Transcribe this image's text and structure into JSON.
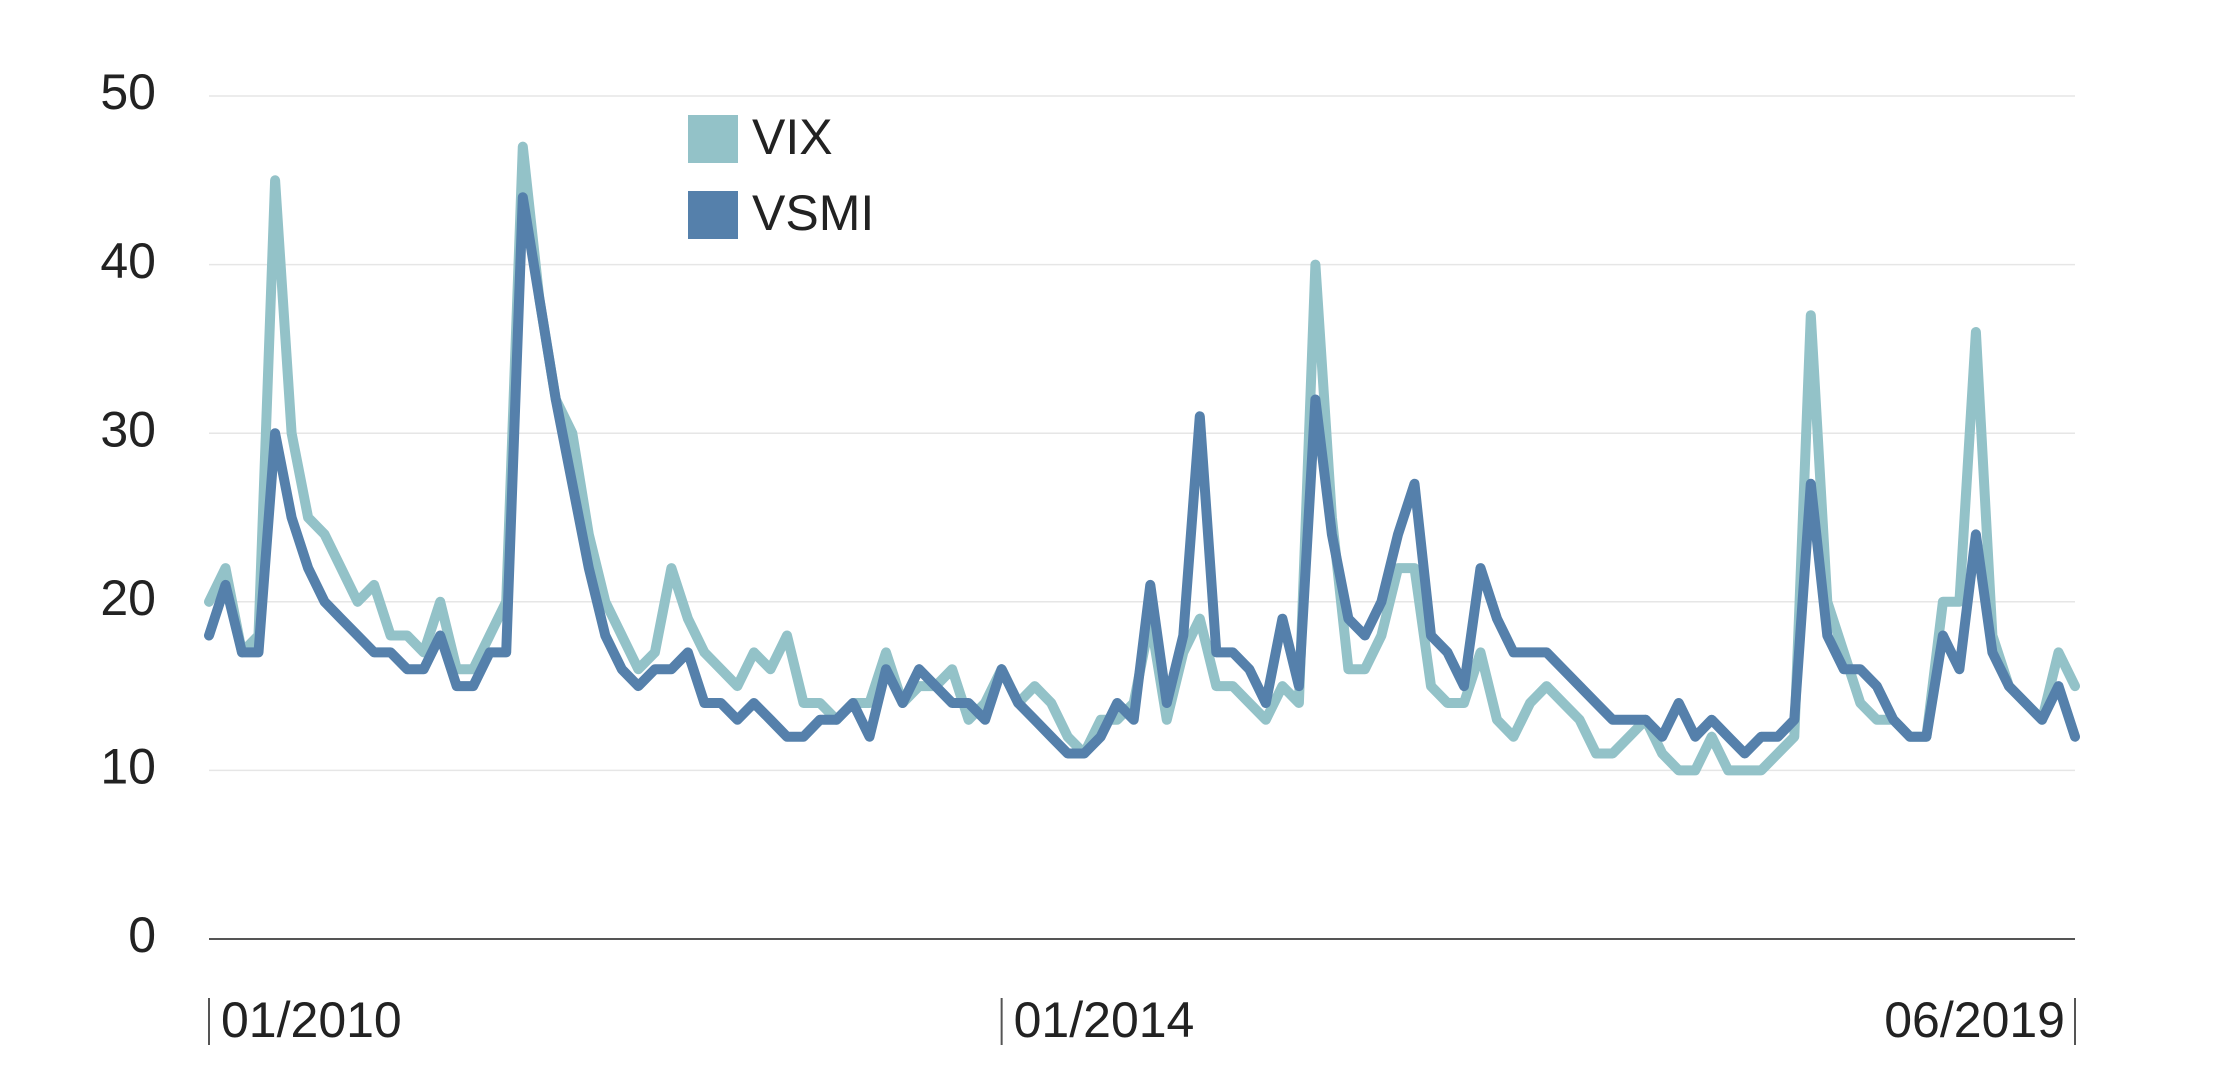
{
  "chart_data": {
    "type": "line",
    "x": [
      "01/2010",
      "02/2010",
      "03/2010",
      "04/2010",
      "05/2010",
      "06/2010",
      "07/2010",
      "08/2010",
      "09/2010",
      "10/2010",
      "11/2010",
      "12/2010",
      "01/2011",
      "02/2011",
      "03/2011",
      "04/2011",
      "05/2011",
      "06/2011",
      "07/2011",
      "08/2011",
      "09/2011",
      "10/2011",
      "11/2011",
      "12/2011",
      "01/2012",
      "02/2012",
      "03/2012",
      "04/2012",
      "05/2012",
      "06/2012",
      "07/2012",
      "08/2012",
      "09/2012",
      "10/2012",
      "11/2012",
      "12/2012",
      "01/2013",
      "02/2013",
      "03/2013",
      "04/2013",
      "05/2013",
      "06/2013",
      "07/2013",
      "08/2013",
      "09/2013",
      "10/2013",
      "11/2013",
      "12/2013",
      "01/2014",
      "02/2014",
      "03/2014",
      "04/2014",
      "05/2014",
      "06/2014",
      "07/2014",
      "08/2014",
      "09/2014",
      "10/2014",
      "11/2014",
      "12/2014",
      "01/2015",
      "02/2015",
      "03/2015",
      "04/2015",
      "05/2015",
      "06/2015",
      "07/2015",
      "08/2015",
      "09/2015",
      "10/2015",
      "11/2015",
      "12/2015",
      "01/2016",
      "02/2016",
      "03/2016",
      "04/2016",
      "05/2016",
      "06/2016",
      "07/2016",
      "08/2016",
      "09/2016",
      "10/2016",
      "11/2016",
      "12/2016",
      "01/2017",
      "02/2017",
      "03/2017",
      "04/2017",
      "05/2017",
      "06/2017",
      "07/2017",
      "08/2017",
      "09/2017",
      "10/2017",
      "11/2017",
      "12/2017",
      "01/2018",
      "02/2018",
      "03/2018",
      "04/2018",
      "05/2018",
      "06/2018",
      "07/2018",
      "08/2018",
      "09/2018",
      "10/2018",
      "11/2018",
      "12/2018",
      "01/2019",
      "02/2019",
      "03/2019",
      "04/2019",
      "05/2019",
      "06/2019"
    ],
    "series": [
      {
        "name": "VIX",
        "color": "#93c2c8",
        "values": [
          20,
          22,
          17,
          18,
          45,
          30,
          25,
          24,
          22,
          20,
          21,
          18,
          18,
          17,
          20,
          16,
          16,
          18,
          20,
          47,
          38,
          32,
          30,
          24,
          20,
          18,
          16,
          17,
          22,
          19,
          17,
          16,
          15,
          17,
          16,
          18,
          14,
          14,
          13,
          14,
          14,
          17,
          14,
          15,
          15,
          16,
          13,
          14,
          16,
          14,
          15,
          14,
          12,
          11,
          13,
          13,
          14,
          19,
          13,
          17,
          19,
          15,
          15,
          14,
          13,
          15,
          14,
          40,
          25,
          16,
          16,
          18,
          22,
          22,
          15,
          14,
          14,
          17,
          13,
          12,
          14,
          15,
          14,
          13,
          11,
          11,
          12,
          13,
          11,
          10,
          10,
          12,
          10,
          10,
          10,
          11,
          12,
          37,
          20,
          17,
          14,
          13,
          13,
          12,
          12,
          20,
          20,
          36,
          18,
          15,
          14,
          13,
          17,
          15
        ]
      },
      {
        "name": "VSMI",
        "color": "#5580ab",
        "values": [
          18,
          21,
          17,
          17,
          30,
          25,
          22,
          20,
          19,
          18,
          17,
          17,
          16,
          16,
          18,
          15,
          15,
          17,
          17,
          44,
          38,
          32,
          27,
          22,
          18,
          16,
          15,
          16,
          16,
          17,
          14,
          14,
          13,
          14,
          13,
          12,
          12,
          13,
          13,
          14,
          12,
          16,
          14,
          16,
          15,
          14,
          14,
          13,
          16,
          14,
          13,
          12,
          11,
          11,
          12,
          14,
          13,
          21,
          14,
          18,
          31,
          17,
          17,
          16,
          14,
          19,
          15,
          32,
          24,
          19,
          18,
          20,
          24,
          27,
          18,
          17,
          15,
          22,
          19,
          17,
          17,
          17,
          16,
          15,
          14,
          13,
          13,
          13,
          12,
          14,
          12,
          13,
          12,
          11,
          12,
          12,
          13,
          27,
          18,
          16,
          16,
          15,
          13,
          12,
          12,
          18,
          16,
          24,
          17,
          15,
          14,
          13,
          15,
          12
        ]
      }
    ],
    "ylim": [
      0,
      50
    ],
    "yticks": [
      0,
      10,
      20,
      30,
      40,
      50
    ],
    "xticks": [
      "01/2010",
      "01/2014",
      "06/2019"
    ],
    "grid": true,
    "legend": "top-left"
  }
}
